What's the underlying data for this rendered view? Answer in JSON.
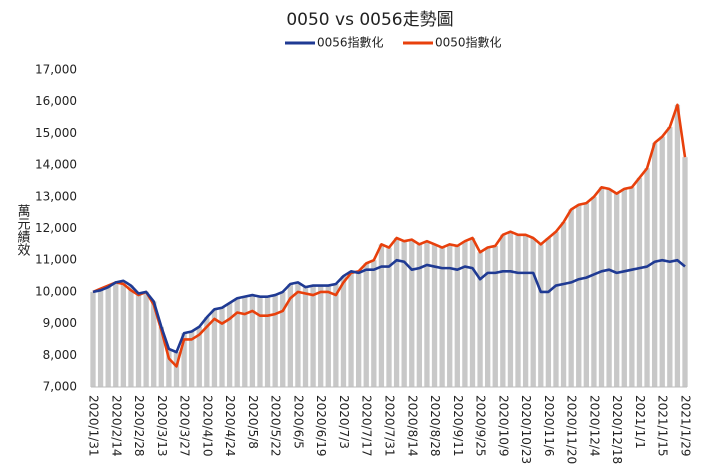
{
  "chart_data": {
    "type": "line",
    "title": "0050 vs 0056走勢圖",
    "y_label": "萬元績效",
    "categories": [
      "2020/1/31",
      null,
      null,
      "2020/2/14",
      null,
      null,
      "2020/2/28",
      null,
      null,
      "2020/3/13",
      null,
      null,
      "2020/3/27",
      null,
      null,
      "2020/4/10",
      null,
      null,
      "2020/4/24",
      null,
      null,
      "2020/5/8",
      null,
      null,
      "2020/5/22",
      null,
      null,
      "2020/6/5",
      null,
      null,
      "2020/6/19",
      null,
      null,
      "2020/7/3",
      null,
      null,
      "2020/7/17",
      null,
      null,
      "2020/7/31",
      null,
      null,
      "2020/8/14",
      null,
      null,
      "2020/8/28",
      null,
      null,
      "2020/9/11",
      null,
      null,
      "2020/9/25",
      null,
      null,
      "2020/10/9",
      null,
      null,
      "2020/10/23",
      null,
      null,
      "2020/11/6",
      null,
      null,
      "2020/11/20",
      null,
      null,
      "2020/12/4",
      null,
      null,
      "2020/12/18",
      null,
      null,
      "2021/1/1",
      null,
      null,
      "2021/1/15",
      null,
      null,
      "2021/1/29"
    ],
    "series": [
      {
        "name": "0056指數化",
        "color": "#1f3a93",
        "values": [
          10000,
          10050,
          10150,
          10300,
          10350,
          10200,
          9950,
          10000,
          9700,
          8900,
          8200,
          8100,
          8700,
          8750,
          8900,
          9200,
          9450,
          9500,
          9650,
          9800,
          9850,
          9900,
          9850,
          9850,
          9900,
          10000,
          10250,
          10300,
          10150,
          10200,
          10200,
          10200,
          10250,
          10500,
          10650,
          10600,
          10700,
          10700,
          10800,
          10800,
          11000,
          10950,
          10700,
          10750,
          10850,
          10800,
          10750,
          10750,
          10700,
          10800,
          10750,
          10400,
          10600,
          10600,
          10650,
          10650,
          10600,
          10600,
          10600,
          10000,
          10000,
          10200,
          10250,
          10300,
          10400,
          10450,
          10550,
          10650,
          10700,
          10600,
          10650,
          10700,
          10750,
          10800,
          10950,
          11000,
          10950,
          11000,
          10800
        ]
      },
      {
        "name": "0050指數化",
        "color": "#e8400c",
        "values": [
          10000,
          10100,
          10200,
          10300,
          10250,
          10050,
          9900,
          10000,
          9600,
          8800,
          7900,
          7650,
          8500,
          8500,
          8650,
          8900,
          9150,
          9000,
          9150,
          9350,
          9300,
          9400,
          9250,
          9250,
          9300,
          9400,
          9800,
          10000,
          9950,
          9900,
          10000,
          10000,
          9900,
          10300,
          10600,
          10650,
          10900,
          11000,
          11500,
          11400,
          11700,
          11600,
          11650,
          11500,
          11600,
          11500,
          11400,
          11500,
          11450,
          11600,
          11700,
          11250,
          11400,
          11450,
          11800,
          11900,
          11800,
          11800,
          11700,
          11500,
          11700,
          11900,
          12200,
          12600,
          12750,
          12800,
          13000,
          13300,
          13250,
          13100,
          13250,
          13300,
          13600,
          13900,
          14700,
          14900,
          15200,
          15900,
          14250
        ]
      }
    ],
    "ylim": [
      7000,
      17000
    ],
    "yticks": [
      {
        "value": 7000,
        "label": "7,000"
      },
      {
        "value": 8000,
        "label": "8,000"
      },
      {
        "value": 9000,
        "label": "9,000"
      },
      {
        "value": 10000,
        "label": "10,000"
      },
      {
        "value": 11000,
        "label": "11,000"
      },
      {
        "value": 12000,
        "label": "12,000"
      },
      {
        "value": 13000,
        "label": "13,000"
      },
      {
        "value": 14000,
        "label": "14,000"
      },
      {
        "value": 15000,
        "label": "15,000"
      },
      {
        "value": 16000,
        "label": "16,000"
      },
      {
        "value": 17000,
        "label": "17,000"
      }
    ],
    "grid": false
  }
}
